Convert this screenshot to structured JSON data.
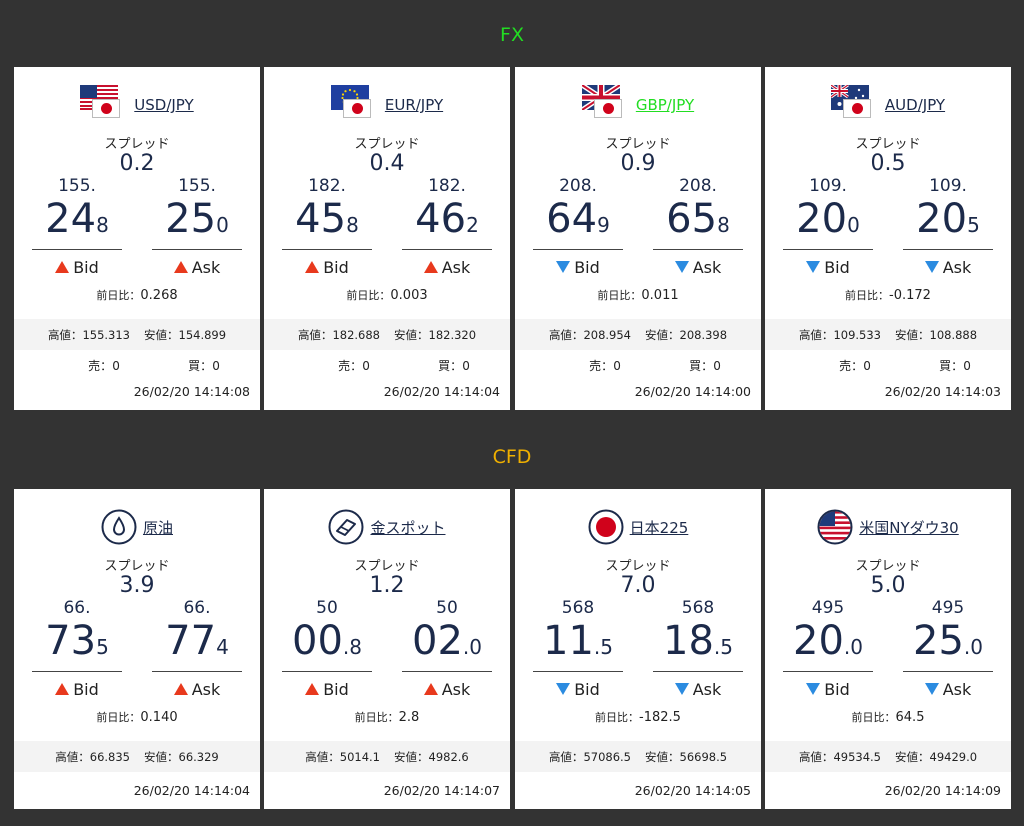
{
  "sections": {
    "fx": {
      "title": "FX"
    },
    "cfd": {
      "title": "CFD"
    }
  },
  "labels": {
    "spread": "スプレッド",
    "bid": "Bid",
    "ask": "Ask",
    "change": "前日比：",
    "high": "高値：",
    "low": "安値：",
    "sell": "売：",
    "buy": "買："
  },
  "colors": {
    "up": "#e8391d",
    "down": "#2b8be0",
    "fx_title": "#22dd22",
    "cfd_title": "#f0b000"
  },
  "fx": [
    {
      "pair": "USD/JPY",
      "flag": "us-flag-icon",
      "spread": "0.2",
      "bid": {
        "pre": "155.",
        "big": "24",
        "small": "8"
      },
      "ask": {
        "pre": "155.",
        "big": "25",
        "small": "0"
      },
      "direction": "up",
      "change": "0.268",
      "high": "155.313",
      "low": "154.899",
      "sell": "0",
      "buy": "0",
      "time": "26/02/20 14:14:08"
    },
    {
      "pair": "EUR/JPY",
      "flag": "eu-flag-icon",
      "spread": "0.4",
      "bid": {
        "pre": "182.",
        "big": "45",
        "small": "8"
      },
      "ask": {
        "pre": "182.",
        "big": "46",
        "small": "2"
      },
      "direction": "up",
      "change": "0.003",
      "high": "182.688",
      "low": "182.320",
      "sell": "0",
      "buy": "0",
      "time": "26/02/20 14:14:04"
    },
    {
      "pair": "GBP/JPY",
      "flag": "uk-flag-icon",
      "spread": "0.9",
      "bid": {
        "pre": "208.",
        "big": "64",
        "small": "9"
      },
      "ask": {
        "pre": "208.",
        "big": "65",
        "small": "8"
      },
      "direction": "down",
      "change": "0.011",
      "high": "208.954",
      "low": "208.398",
      "sell": "0",
      "buy": "0",
      "time": "26/02/20 14:14:00"
    },
    {
      "pair": "AUD/JPY",
      "flag": "au-flag-icon",
      "spread": "0.5",
      "bid": {
        "pre": "109.",
        "big": "20",
        "small": "0"
      },
      "ask": {
        "pre": "109.",
        "big": "20",
        "small": "5"
      },
      "direction": "down",
      "change": "-0.172",
      "high": "109.533",
      "low": "108.888",
      "sell": "0",
      "buy": "0",
      "time": "26/02/20 14:14:03"
    }
  ],
  "cfd": [
    {
      "name": "原油",
      "icon": "oil-drop-icon",
      "spread": "3.9",
      "bid": {
        "pre": "66.",
        "big": "73",
        "small": "5"
      },
      "ask": {
        "pre": "66.",
        "big": "77",
        "small": "4"
      },
      "direction": "up",
      "change": "0.140",
      "high": "66.835",
      "low": "66.329",
      "time": "26/02/20 14:14:04"
    },
    {
      "name": "金スポット",
      "icon": "gold-bar-icon",
      "spread": "1.2",
      "bid": {
        "pre": "50",
        "big": "00",
        "small": ".8"
      },
      "ask": {
        "pre": "50",
        "big": "02",
        "small": ".0"
      },
      "direction": "up",
      "change": "2.8",
      "high": "5014.1",
      "low": "4982.6",
      "time": "26/02/20 14:14:07"
    },
    {
      "name": "日本225",
      "icon": "japan-flag-icon",
      "spread": "7.0",
      "bid": {
        "pre": "568",
        "big": "11",
        "small": ".5"
      },
      "ask": {
        "pre": "568",
        "big": "18",
        "small": ".5"
      },
      "direction": "down",
      "change": "-182.5",
      "high": "57086.5",
      "low": "56698.5",
      "time": "26/02/20 14:14:05"
    },
    {
      "name": "米国NYダウ30",
      "icon": "us-flag-round-icon",
      "spread": "5.0",
      "bid": {
        "pre": "495",
        "big": "20",
        "small": ".0"
      },
      "ask": {
        "pre": "495",
        "big": "25",
        "small": ".0"
      },
      "direction": "down",
      "change": "64.5",
      "high": "49534.5",
      "low": "49429.0",
      "time": "26/02/20 14:14:09"
    }
  ]
}
